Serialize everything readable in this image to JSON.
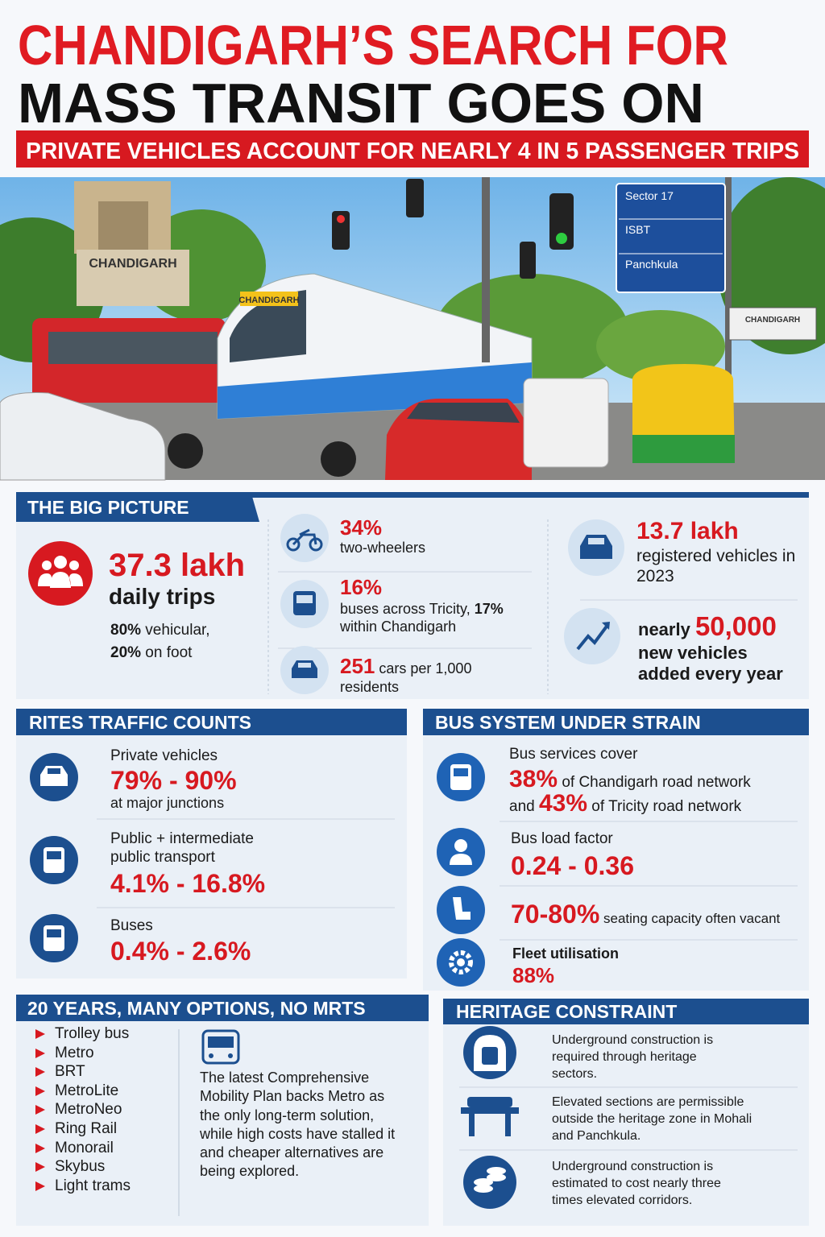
{
  "header": {
    "title_line1": "CHANDIGARH’S SEARCH FOR",
    "title_line2": "MASS TRANSIT GOES ON",
    "subtitle": "PRIVATE VEHICLES ACCOUNT FOR NEARLY 4 IN 5 PASSENGER TRIPS"
  },
  "photo": {
    "landmark_sign": "CHANDIGARH",
    "tram_sign": "CHANDIGARH",
    "direction_signs": [
      "Sector 17",
      "ISBT",
      "Panchkula"
    ],
    "roadside_sign": "CHANDIGARH"
  },
  "big_picture": {
    "heading": "THE BIG PICTURE",
    "daily_trips": {
      "figure": "37.3 lakh",
      "label": "daily trips",
      "vehicular": [
        "80%",
        " vehicular,"
      ],
      "on_foot": [
        "20%",
        " on foot"
      ]
    },
    "two_wheelers": {
      "figure": "34%",
      "label": "two-wheelers"
    },
    "buses": {
      "figure": "16%",
      "label": [
        "buses across Tricity, ",
        "17%",
        " within Chandigarh"
      ]
    },
    "cars": {
      "figure": "251",
      "label": " cars per 1,000 residents"
    },
    "registered": {
      "figure": "13.7 lakh",
      "label": "registered vehicles in 2023"
    },
    "new_vehicles": {
      "prefix": "nearly ",
      "figure": "50,000",
      "label": "new vehicles added every year"
    }
  },
  "rites": {
    "heading": "RITES TRAFFIC COUNTS",
    "items": [
      {
        "label": "Private vehicles",
        "figure": "79% - 90%",
        "note": "at major junctions"
      },
      {
        "label": "Public + intermediate public transport",
        "figure": "4.1% - 16.8%"
      },
      {
        "label": "Buses",
        "figure": "0.4% - 2.6%"
      }
    ]
  },
  "bus_system": {
    "heading": "BUS SYSTEM UNDER STRAIN",
    "coverage": {
      "label": "Bus services cover",
      "line1": [
        "38%",
        " of Chandigarh road network"
      ],
      "line2": [
        "and ",
        "43%",
        " of Tricity road network"
      ]
    },
    "load_factor": {
      "label": "Bus load factor",
      "figure": "0.24 - 0.36"
    },
    "vacancy": {
      "figure": "70-80%",
      "label": " seating capacity often vacant"
    },
    "fleet": {
      "label": "Fleet utilisation",
      "figure": "88%"
    }
  },
  "options": {
    "heading": "20 YEARS, MANY OPTIONS, NO MRTS",
    "list": [
      "Trolley bus",
      "Metro",
      "BRT",
      "MetroLite",
      "MetroNeo",
      "Ring Rail",
      "Monorail",
      "Skybus",
      "Light trams"
    ],
    "note": "The latest Comprehensive Mobility Plan backs Metro as the only long-term solution, while high costs have stalled it and cheaper alternatives are being explored."
  },
  "heritage": {
    "heading": "HERITAGE CONSTRAINT",
    "items": [
      "Underground construction is required through heritage sectors.",
      "Elevated sections are permissible outside the heritage zone in Mohali and Panchkula.",
      "Underground construction is estimated to cost nearly three times elevated corridors."
    ]
  }
}
